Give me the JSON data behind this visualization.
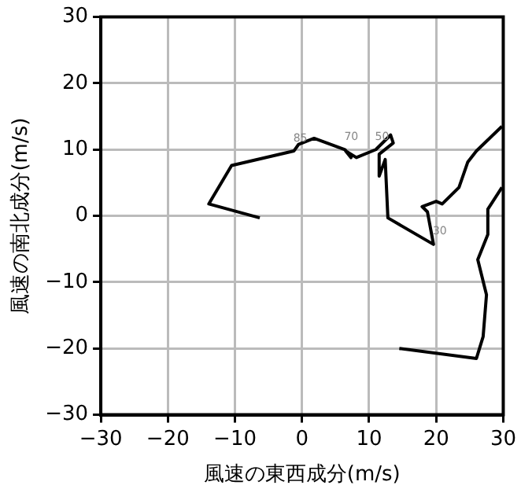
{
  "chart_data": {
    "type": "line",
    "xlabel": "風速の東西成分(m/s)",
    "ylabel": "風速の南北成分(m/s)",
    "x": [
      -6.3,
      -13.9,
      -10.5,
      -1.2,
      -0.5,
      1.8,
      6.4,
      7.3,
      6.5,
      8.1,
      11,
      13.2,
      13.6,
      11.5,
      11.5,
      12.4,
      12.8,
      19.6,
      18.7,
      17.9,
      20,
      20.9,
      23.4,
      24.7,
      26,
      29.8,
      null,
      29.8,
      27.7,
      27.7,
      26.2,
      27.5,
      27,
      26,
      14.5
    ],
    "series": [
      {
        "color": "#000000",
        "values": [
          -0.3,
          1.8,
          7.6,
          9.8,
          10.8,
          11.7,
          10,
          8.8,
          9.8,
          8.8,
          10,
          12.2,
          11,
          9.3,
          6,
          8.5,
          -0.3,
          -4.3,
          0.6,
          1.4,
          2.2,
          1.8,
          4.3,
          8.1,
          9.8,
          13.5,
          null,
          4.3,
          1,
          -2.8,
          -6.6,
          -11.9,
          -18.2,
          -21.5,
          -20
        ]
      }
    ],
    "xlim": [
      -30,
      30
    ],
    "ylim": [
      -30,
      30
    ],
    "xticks": [
      -30,
      -20,
      -10,
      0,
      10,
      20,
      30
    ],
    "yticks": [
      -30,
      -20,
      -10,
      0,
      10,
      20,
      30
    ],
    "grid": true,
    "marker": "none",
    "line_style": "solid",
    "legend": false,
    "annotations": [
      {
        "text": "85",
        "x": -1.2,
        "y": 9.8
      },
      {
        "text": "70",
        "x": 6.4,
        "y": 10
      },
      {
        "text": "50",
        "x": 11,
        "y": 10
      },
      {
        "text": "30",
        "x": 19.6,
        "y": -4.3
      }
    ]
  }
}
